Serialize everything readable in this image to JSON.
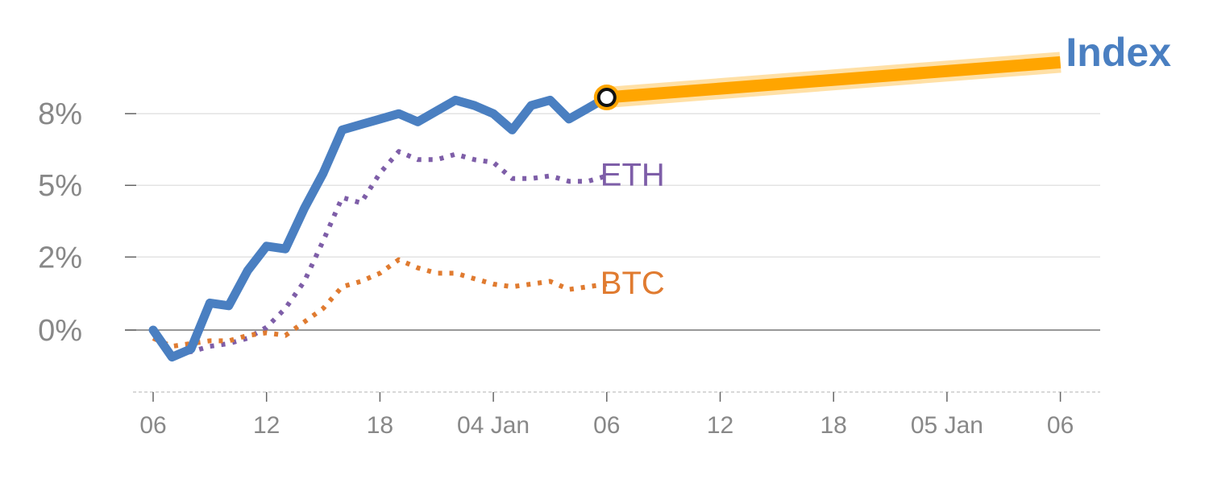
{
  "chart_data": {
    "type": "line",
    "title": "Index",
    "xlabel": "",
    "ylabel": "",
    "x_tick_labels": [
      "06",
      "12",
      "18",
      "04 Jan",
      "06",
      "12",
      "18",
      "05 Jan",
      "06"
    ],
    "y_tick_labels": [
      "0%",
      "2%",
      "5%",
      "8%"
    ],
    "ylim": [
      -2.5,
      8
    ],
    "grid": true,
    "series": [
      {
        "name": "",
        "style": "solid",
        "color": "#4a7fc1",
        "x": [
          0,
          1,
          2,
          3,
          4,
          5,
          6,
          7,
          8,
          9,
          10,
          11,
          12,
          13,
          14,
          15,
          16,
          17,
          18,
          19,
          20,
          21,
          22,
          23,
          24
        ],
        "y": [
          0,
          -1.0,
          -0.7,
          1.0,
          0.9,
          2.2,
          3.1,
          3.0,
          4.5,
          5.8,
          7.4,
          7.6,
          7.8,
          8.0,
          7.7,
          8.1,
          8.5,
          8.3,
          8.0,
          7.4,
          8.3,
          8.5,
          7.8,
          8.2,
          8.6
        ]
      },
      {
        "name": "ETH",
        "style": "dotted",
        "color": "#7e5ea8",
        "x": [
          0,
          1,
          2,
          3,
          4,
          5,
          6,
          7,
          8,
          9,
          10,
          11,
          12,
          13,
          14,
          15,
          16,
          17,
          18,
          19,
          20,
          21,
          22,
          23,
          24
        ],
        "y": [
          -0.1,
          -0.9,
          -0.8,
          -0.6,
          -0.5,
          -0.3,
          0.1,
          0.8,
          1.8,
          3.3,
          4.9,
          4.7,
          5.8,
          6.6,
          6.3,
          6.3,
          6.5,
          6.3,
          6.2,
          5.6,
          5.6,
          5.7,
          5.5,
          5.5,
          5.7
        ]
      },
      {
        "name": "BTC",
        "style": "dotted",
        "color": "#e07b30",
        "x": [
          0,
          1,
          2,
          3,
          4,
          5,
          6,
          7,
          8,
          9,
          10,
          11,
          12,
          13,
          14,
          15,
          16,
          17,
          18,
          19,
          20,
          21,
          22,
          23,
          24
        ],
        "y": [
          -0.3,
          -0.6,
          -0.5,
          -0.4,
          -0.4,
          -0.2,
          -0.1,
          -0.2,
          0.3,
          0.8,
          1.6,
          1.8,
          2.1,
          2.6,
          2.3,
          2.1,
          2.1,
          1.9,
          1.7,
          1.6,
          1.7,
          1.8,
          1.5,
          1.6,
          1.7
        ]
      },
      {
        "name": "",
        "style": "projection",
        "color": "#ffa500",
        "x": [
          24,
          48
        ],
        "y": [
          8.6,
          9.9
        ]
      }
    ],
    "marker": {
      "x": 24,
      "y": 8.6
    }
  }
}
